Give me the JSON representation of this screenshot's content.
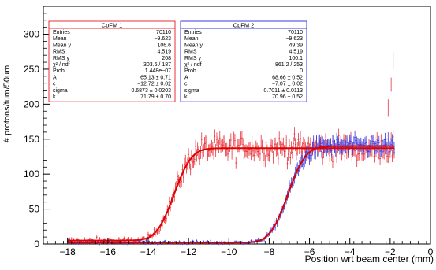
{
  "chart_data": {
    "type": "scatter",
    "xlabel": "Position wrt beam center (mm)",
    "ylabel": "# protons/turn/50um",
    "xlim": [
      -19.2,
      0
    ],
    "ylim": [
      0,
      340
    ],
    "grid": false,
    "x_ticks": [
      -18,
      -16,
      -14,
      -12,
      -10,
      -8,
      -6,
      -4,
      -2,
      0
    ],
    "x_tick_labels": [
      "−18",
      "−16",
      "−14",
      "−12",
      "−10",
      "−8",
      "−6",
      "−4",
      "−2",
      "0"
    ],
    "y_ticks": [
      0,
      50,
      100,
      150,
      200,
      250,
      300
    ],
    "y_tick_labels": [
      "0",
      "50",
      "100",
      "150",
      "200",
      "250",
      "300"
    ],
    "series": [
      {
        "name": "CpFM 1",
        "color": "#e8323c",
        "data_range_x": [
          -18,
          -1.8
        ],
        "low_level": 5,
        "plateau": 137,
        "edge": -12.72,
        "sigma": 0.6873,
        "noise": 20,
        "fit": {
          "A": 65.13,
          "c": -12.72,
          "sigma": 0.6873,
          "k": 71.79
        },
        "stats": [
          [
            "Entries",
            "70110"
          ],
          [
            "Mean",
            "−9.623"
          ],
          [
            "Mean y",
            "106.6"
          ],
          [
            "RMS",
            "4.519"
          ],
          [
            "RMS y",
            "208"
          ],
          [
            "χ² / ndf",
            "303.6 / 187"
          ],
          [
            "Prob",
            "1.448e−07"
          ],
          [
            "A",
            "65.13 ± 0.71"
          ],
          [
            "c",
            "−12.72 ± 0.02"
          ],
          [
            "sigma",
            "0.6873 ± 0.0203"
          ],
          [
            "k",
            "71.79 ± 0.70"
          ]
        ]
      },
      {
        "name": "CpFM 2",
        "color": "#3a3ae0",
        "data_range_x": [
          -18,
          -1.8
        ],
        "low_level": 2,
        "plateau": 140,
        "edge": -7.07,
        "sigma": 0.7011,
        "noise": 12,
        "fit": {
          "A": 68.66,
          "c": -7.07,
          "sigma": 0.7011,
          "k": 70.96
        },
        "stats": [
          [
            "Entries",
            "70110"
          ],
          [
            "Mean",
            "−9.623"
          ],
          [
            "Mean y",
            "49.39"
          ],
          [
            "RMS",
            "4.519"
          ],
          [
            "RMS y",
            "100.1"
          ],
          [
            "χ² / ndf",
            "861.2 / 253"
          ],
          [
            "Prob",
            "0"
          ],
          [
            "A",
            "68.66 ± 0.52"
          ],
          [
            "c",
            "−7.07 ± 0.02"
          ],
          [
            "sigma",
            "0.7011 ± 0.0113"
          ],
          [
            "k",
            "70.96 ± 0.52"
          ]
        ]
      }
    ],
    "fit_color": "#e00000"
  }
}
